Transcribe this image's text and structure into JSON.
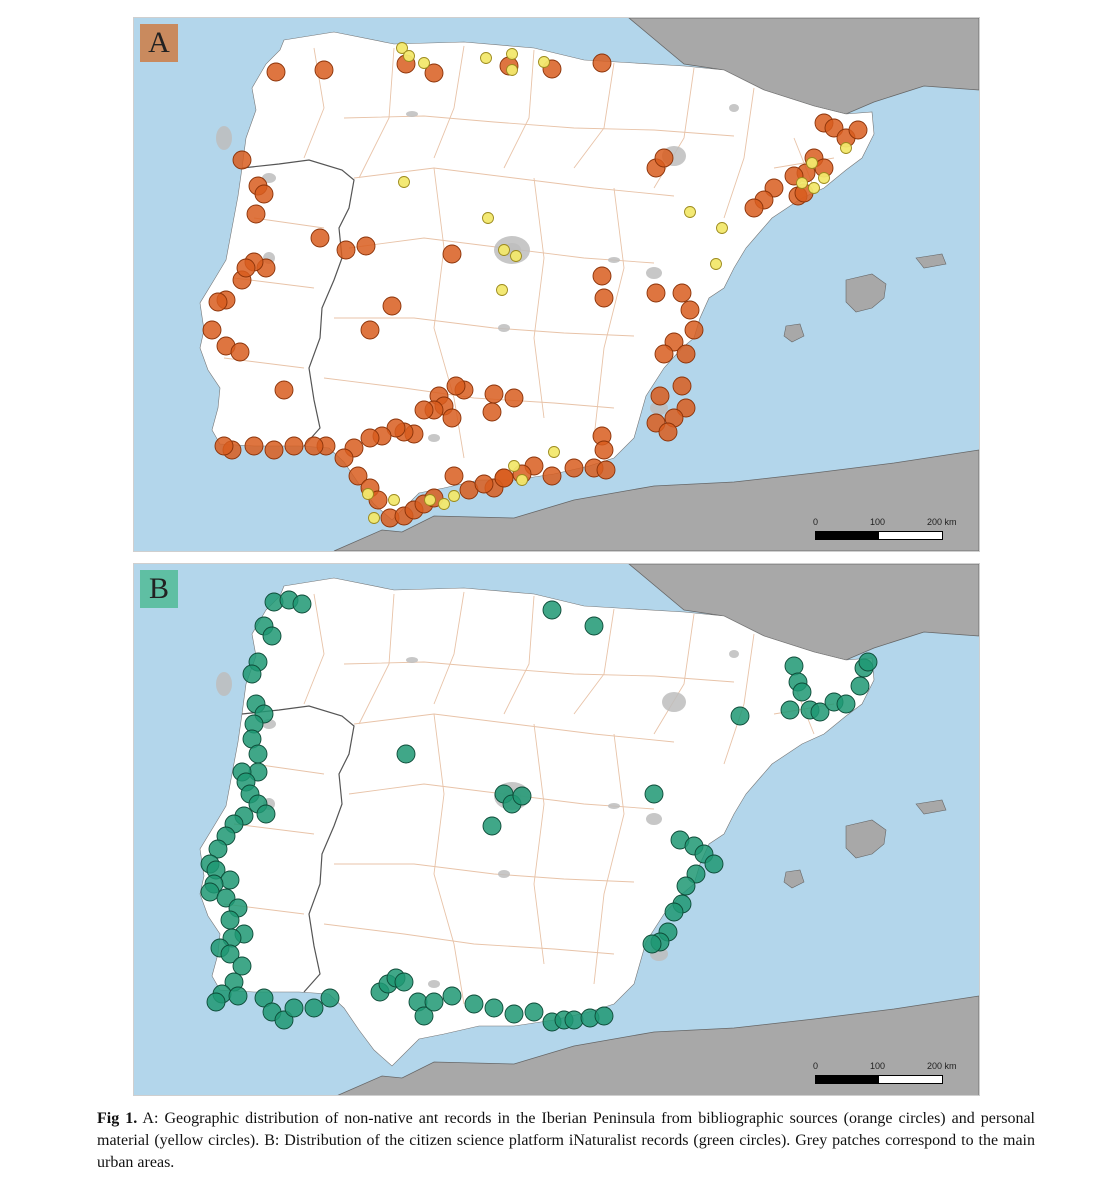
{
  "panels": [
    {
      "id": "A",
      "label": "A",
      "label_color": "#c98a5e",
      "point_groups": [
        {
          "kind": "bibliographic",
          "fill": "#d85d1e",
          "stroke": "#8a3208"
        },
        {
          "kind": "personal",
          "fill": "#f2e86d",
          "stroke": "#9c8a1c"
        }
      ]
    },
    {
      "id": "B",
      "label": "B",
      "label_color": "#5fbfa3",
      "point_groups": [
        {
          "kind": "inaturalist",
          "fill": "#1f9873",
          "stroke": "#0d4a37"
        }
      ]
    }
  ],
  "scalebar": {
    "ticks": [
      "0",
      "100",
      "200 km"
    ]
  },
  "colors": {
    "sea": "#b3d6eb",
    "land": "#ffffff",
    "foreign_land": "#a8a8a8",
    "province_border": "#e8c3a8",
    "country_border": "#555555",
    "urban": "#bdbdbd"
  },
  "caption": {
    "fig_label": "Fig 1.",
    "text": " A: Geographic distribution of non-native ant records in the Iberian Peninsula from bibliographic sources (orange circles) and personal material (yellow circles). B: Distribution of the citizen science platform iNaturalist records (green circles). Grey patches correspond to the main urban areas."
  }
}
